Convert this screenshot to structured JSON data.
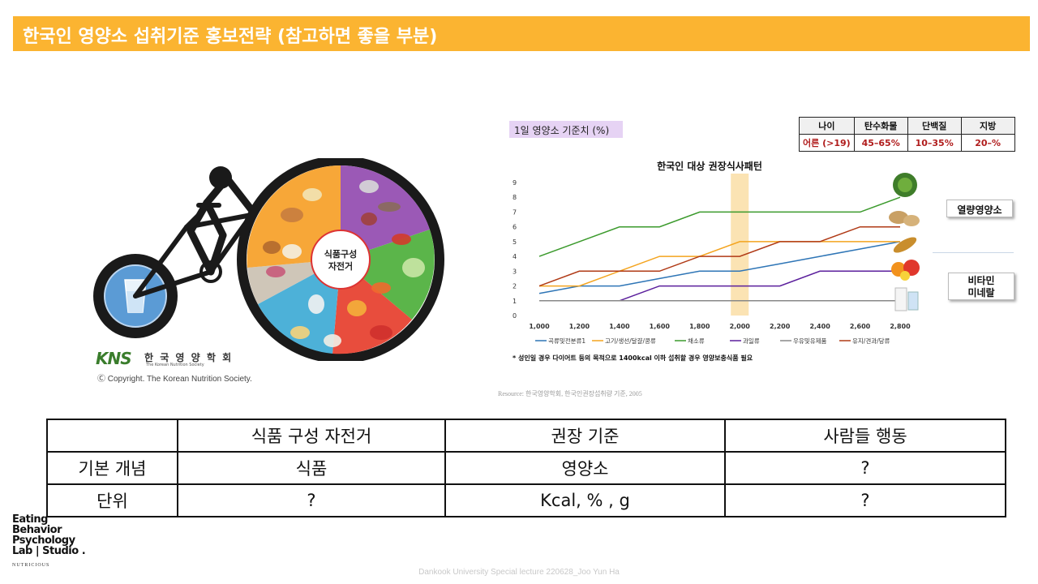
{
  "title": "한국인 영양소 섭취기준 홍보전략 (참고하면 좋을 부분)",
  "bicycle": {
    "center_line1": "식품구성",
    "center_line2": "자전거",
    "logo_kns": "KNS",
    "logo_korean": "한 국 영 양 학 회",
    "logo_english": "The Korean Nutrition Society",
    "copyright": "Ⓒ Copyright. The Korean Nutrition Society."
  },
  "nutrient_label": "1일 영양소 기준치 (%)",
  "ratio_table": {
    "headers": [
      "나이",
      "탄수화물",
      "단백질",
      "지방"
    ],
    "values": [
      "어른 (>19)",
      "45–65%",
      "10–35%",
      "20–%"
    ]
  },
  "side_labels": {
    "energy": "열량영양소",
    "vitamin_line1": "비타민",
    "vitamin_line2": "미네랄"
  },
  "chart_data": {
    "type": "line",
    "title": "한국인 대상 권장식사패턴",
    "x": [
      1000,
      1200,
      1400,
      1600,
      1800,
      2000,
      2200,
      2400,
      2600,
      2800
    ],
    "x_tick_labels": [
      "1,000",
      "1,200",
      "1,400",
      "1,600",
      "1,800",
      "2,000",
      "2,200",
      "2,400",
      "2,600",
      "2,800"
    ],
    "ylim": [
      0,
      9
    ],
    "y_ticks": [
      0,
      1,
      2,
      3,
      4,
      5,
      6,
      7,
      8,
      9
    ],
    "highlight_x": 2000,
    "series": [
      {
        "name": "곡류및전분류1",
        "color": "#2e75b6",
        "values": [
          1.5,
          2,
          2,
          2.5,
          3,
          3,
          3.5,
          4,
          4.5,
          5
        ]
      },
      {
        "name": "고기/생선/달걀/콩류",
        "color": "#f4a41f",
        "values": [
          2,
          2,
          3,
          4,
          4,
          5,
          5,
          5,
          5,
          5
        ]
      },
      {
        "name": "채소류",
        "color": "#3b9a2c",
        "values": [
          4,
          5,
          6,
          6,
          7,
          7,
          7,
          7,
          7,
          8
        ]
      },
      {
        "name": "과일류",
        "color": "#5b1f9c",
        "values": [
          null,
          null,
          1,
          2,
          2,
          2,
          2,
          3,
          3,
          3
        ]
      },
      {
        "name": "우유및유제품",
        "color": "#888888",
        "values": [
          1,
          1,
          1,
          1,
          1,
          1,
          1,
          1,
          1,
          1
        ]
      },
      {
        "name": "유지/견과/당류",
        "color": "#b03a16",
        "values": [
          2,
          3,
          3,
          3,
          4,
          4,
          5,
          5,
          6,
          6
        ]
      }
    ]
  },
  "chart_note": "* 성인일 경우 다이어트 등의 목적으로 1400kcal 이하 섭취할 경우 영양보충식품 필요",
  "resource": "Resource: 한국영양학회, 한국인권장섭취량 기준, 2005",
  "comparison_table": {
    "header": [
      "",
      "식품 구성 자전거",
      "권장 기준",
      "사람들 행동"
    ],
    "rows": [
      [
        "기본 개념",
        "식품",
        "영양소",
        "?"
      ],
      [
        "단위",
        "?",
        "Kcal, % , g",
        "?"
      ]
    ]
  },
  "lab_logo": {
    "lines": [
      "Eating",
      "Behavior",
      "Psychology",
      "Lab | Studio ."
    ],
    "sub": "NUTRICIOUS"
  },
  "footer": "Dankook  University Special lecture 220628_Joo Yun Ha"
}
